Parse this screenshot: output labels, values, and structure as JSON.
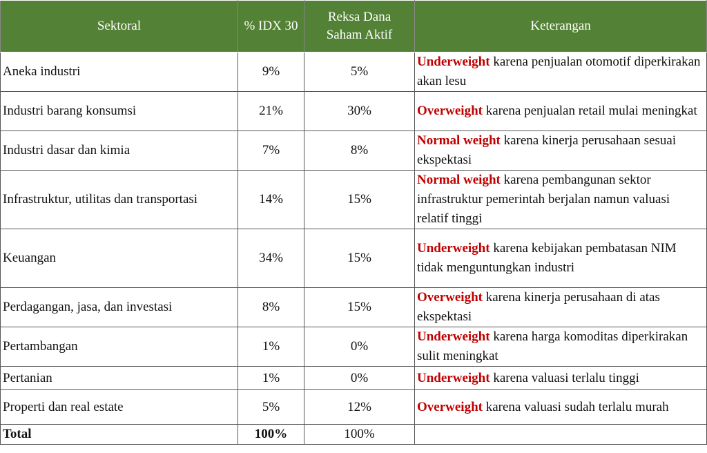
{
  "table": {
    "header": [
      "Sektoral",
      "% IDX 30",
      "Reksa Dana Saham Aktif",
      "Keterangan"
    ],
    "rows": [
      {
        "sektor": "Aneka industri",
        "idx": "9%",
        "reksa": "5%",
        "weight": "Underweight",
        "note": "karena penjualan otomotif diperkirakan akan lesu"
      },
      {
        "sektor": "Industri barang konsumsi",
        "idx": "21%",
        "reksa": "30%",
        "weight": "Overweight",
        "note": "karena penjualan retail mulai meningkat"
      },
      {
        "sektor": "Industri dasar dan kimia",
        "idx": "7%",
        "reksa": "8%",
        "weight": "Normal weight",
        "note": "karena kinerja perusahaan sesuai ekspektasi"
      },
      {
        "sektor": "Infrastruktur, utilitas dan transportasi",
        "idx": "14%",
        "reksa": "15%",
        "weight": "Normal weight",
        "note": "karena pembangunan sektor infrastruktur pemerintah berjalan namun valuasi relatif tinggi"
      },
      {
        "sektor": "Keuangan",
        "idx": "34%",
        "reksa": "15%",
        "weight": "Underweight",
        "note": "karena kebijakan pembatasan NIM tidak menguntungkan industri"
      },
      {
        "sektor": "Perdagangan, jasa, dan investasi",
        "idx": "8%",
        "reksa": "15%",
        "weight": "Overweight",
        "note": "karena kinerja perusahaan di atas ekspektasi"
      },
      {
        "sektor": "Pertambangan",
        "idx": "1%",
        "reksa": "0%",
        "weight": "Underweight",
        "note": "karena harga komoditas diperkirakan sulit meningkat"
      },
      {
        "sektor": "Pertanian",
        "idx": "1%",
        "reksa": "0%",
        "weight": "Underweight",
        "note": "karena valuasi terlalu tinggi"
      },
      {
        "sektor": "Properti dan real estate",
        "idx": "5%",
        "reksa": "12%",
        "weight": "Overweight",
        "note": "karena valuasi sudah terlalu murah"
      }
    ],
    "total": {
      "label": "Total",
      "idx": "100%",
      "reksa": "100%"
    }
  }
}
